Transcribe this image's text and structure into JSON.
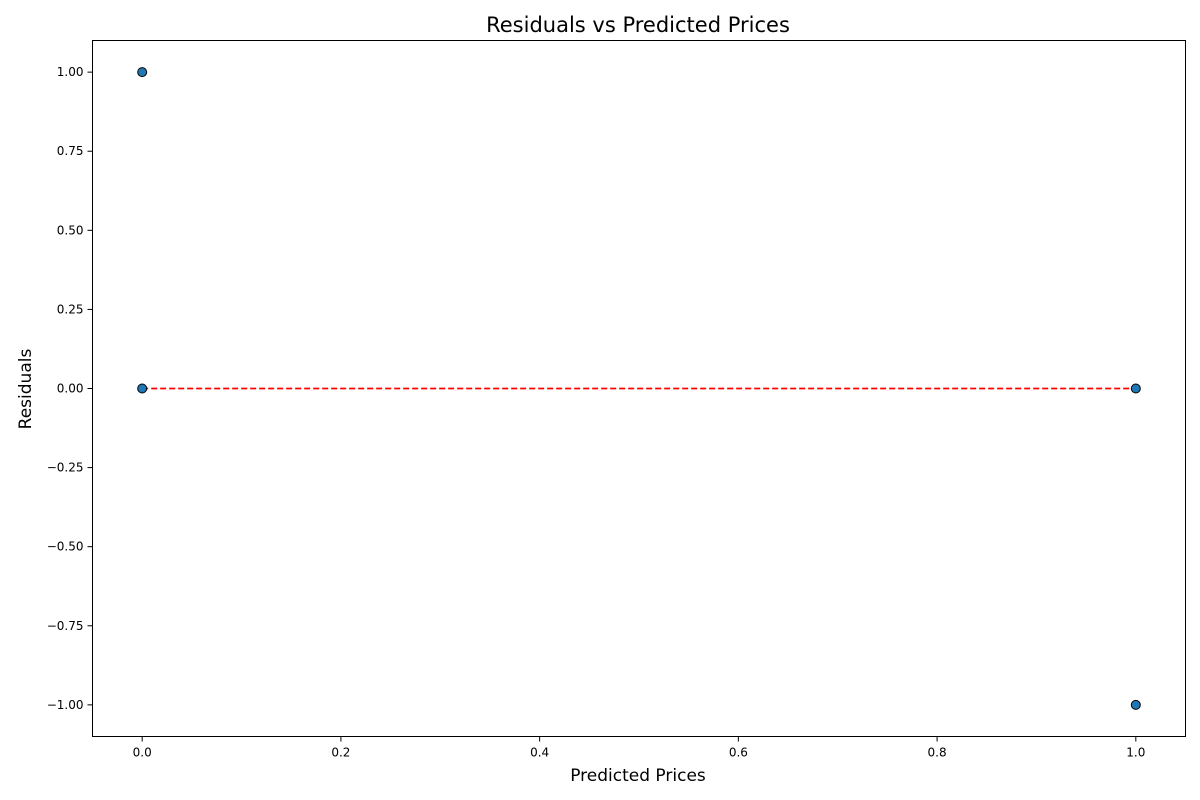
{
  "chart_data": {
    "type": "scatter",
    "title": "Residuals vs Predicted Prices",
    "xlabel": "Predicted Prices",
    "ylabel": "Residuals",
    "xlim": [
      -0.05,
      1.05
    ],
    "ylim": [
      -1.1,
      1.1
    ],
    "xticks": [
      0.0,
      0.2,
      0.4,
      0.6,
      0.8,
      1.0
    ],
    "xtick_labels": [
      "0.0",
      "0.2",
      "0.4",
      "0.6",
      "0.8",
      "1.0"
    ],
    "yticks": [
      -1.0,
      -0.75,
      -0.5,
      -0.25,
      0.0,
      0.25,
      0.5,
      0.75,
      1.0
    ],
    "ytick_labels": [
      "−1.00",
      "−0.75",
      "−0.50",
      "−0.25",
      "0.00",
      "0.25",
      "0.50",
      "0.75",
      "1.00"
    ],
    "grid": false,
    "series": [
      {
        "values": [
          {
            "x": 0.0,
            "y": 1.0
          },
          {
            "x": 0.0,
            "y": 0.0
          },
          {
            "x": 1.0,
            "y": 0.0
          },
          {
            "x": 1.0,
            "y": -1.0
          }
        ],
        "color": "#1f77b4",
        "edge_color": "#000000"
      }
    ],
    "reference_line": {
      "y": 0.0,
      "x_from": 0.0,
      "x_to": 1.0,
      "style": "dashed",
      "color": "#ff0000"
    }
  }
}
